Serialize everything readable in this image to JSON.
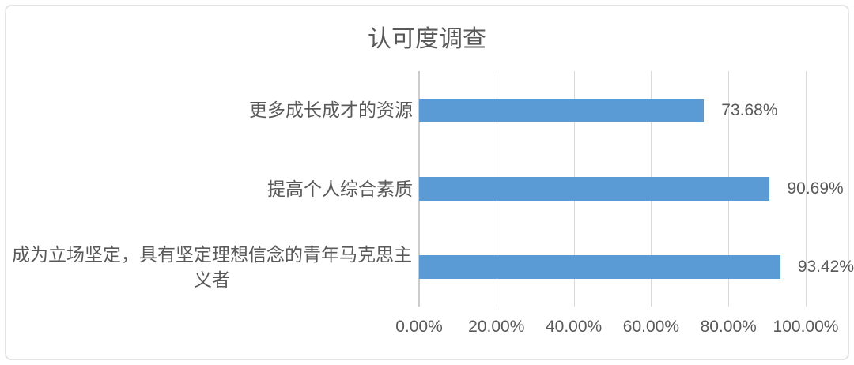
{
  "chart_data": {
    "type": "bar",
    "orientation": "horizontal",
    "title": "认可度调查",
    "categories": [
      "更多成长成才的资源",
      "提高个人综合素质",
      "成为立场坚定，具有坚定理想信念的青年马克思主义者"
    ],
    "values": [
      73.68,
      90.69,
      93.42
    ],
    "value_labels": [
      "73.68%",
      "90.69%",
      "93.42%"
    ],
    "x_ticks": [
      "0.00%",
      "20.00%",
      "40.00%",
      "60.00%",
      "80.00%",
      "100.00%"
    ],
    "xlabel": "",
    "ylabel": "",
    "xlim": [
      0,
      100
    ],
    "grid": true,
    "legend": false,
    "bar_color": "#5b9bd5",
    "text_color": "#595959",
    "gridline_color": "#d9d9d9",
    "axis_line_color": "#cccccc",
    "frame_border_color": "#e4e4e4",
    "background_color": "#ffffff"
  }
}
